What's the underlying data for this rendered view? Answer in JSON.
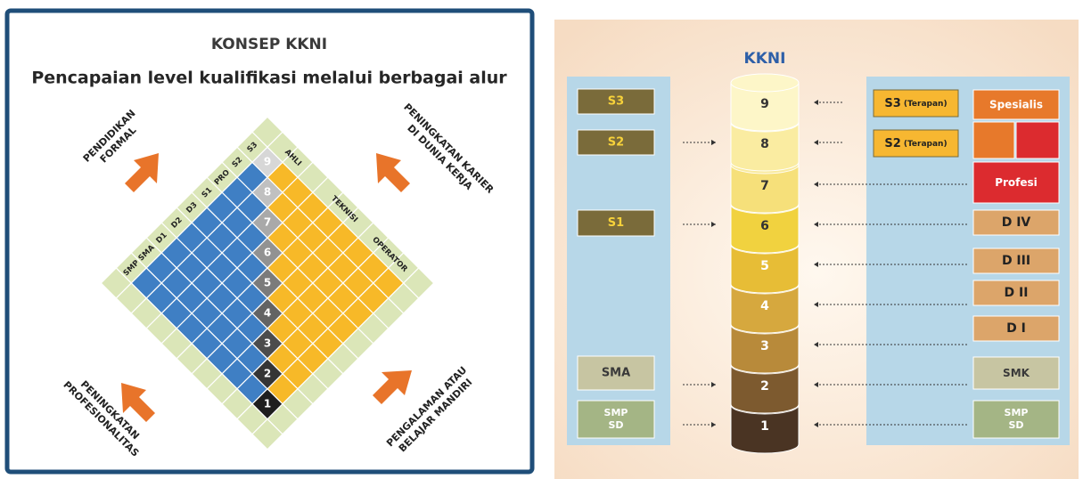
{
  "left_panel": {
    "title": "KONSEP KKNI",
    "subtitle": "Pencapaian level kualifikasi melalui berbagai alur",
    "corners": [
      {
        "lines": [
          "PENDIDIKAN",
          "FORMAL"
        ]
      },
      {
        "lines": [
          "PENINGKATAN KARIER",
          "DI DUNIA KERJA"
        ]
      },
      {
        "lines": [
          "PENINGKATAN",
          "PROFESIONALITAS"
        ]
      },
      {
        "lines": [
          "PENGALAMAN ATAU",
          "BELAJAR MANDIRI"
        ]
      }
    ],
    "education": [
      "SMP",
      "SMA",
      "D1",
      "D2",
      "D3",
      "S1",
      "PRO",
      "S2",
      "S3"
    ],
    "career": [
      "AHLI",
      "TEKNISI",
      "OPERATOR"
    ],
    "levels": [
      "1",
      "2",
      "3",
      "4",
      "5",
      "6",
      "7",
      "8",
      "9"
    ]
  },
  "right_panel": {
    "title": "KKNI",
    "left_items": [
      {
        "lines": [
          "S3"
        ]
      },
      {
        "lines": [
          "S2"
        ]
      },
      {
        "lines": [
          "S1"
        ]
      },
      {
        "lines": [
          "SMA"
        ]
      },
      {
        "lines": [
          "SMP",
          "SD"
        ]
      }
    ],
    "levels": [
      "1",
      "2",
      "3",
      "4",
      "5",
      "6",
      "7",
      "8",
      "9"
    ],
    "right_items": [
      {
        "label": "S3",
        "note": "(Terapan)"
      },
      {
        "label": "S2",
        "note": "(Terapan)"
      },
      {
        "label": "Spesialis"
      },
      {
        "label": "Profesi"
      },
      {
        "label": "D IV"
      },
      {
        "label": "D III"
      },
      {
        "label": "D II"
      },
      {
        "label": "D I"
      },
      {
        "label": "SMK"
      },
      {
        "lines": [
          "SMP",
          "SD"
        ]
      }
    ]
  }
}
